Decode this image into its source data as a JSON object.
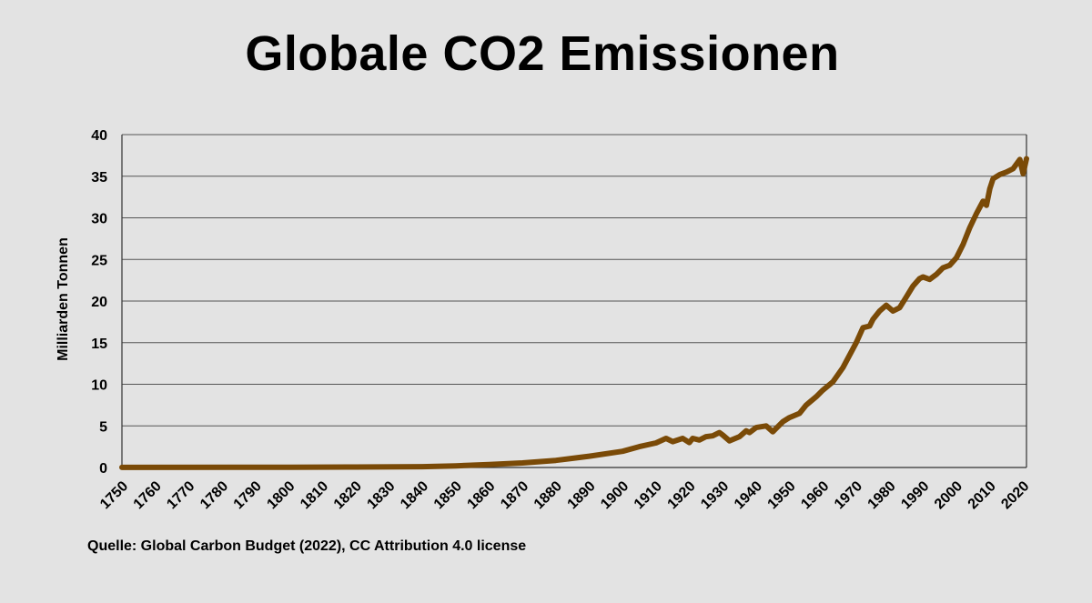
{
  "title": "Globale CO2 Emissionen",
  "source": "Quelle: Global Carbon Budget (2022), CC Attribution 4.0 license",
  "colors": {
    "line": "#7a4a07",
    "grid": "#555555",
    "background": "#e3e3e3"
  },
  "chart_data": {
    "type": "line",
    "title": "Globale CO2 Emissionen",
    "xlabel": "",
    "ylabel": "Milliarden Tonnen",
    "xlim": [
      1750,
      2021
    ],
    "ylim": [
      0,
      40
    ],
    "grid": true,
    "x_ticks": [
      1750,
      1760,
      1770,
      1780,
      1790,
      1800,
      1810,
      1820,
      1830,
      1840,
      1850,
      1860,
      1870,
      1880,
      1890,
      1900,
      1910,
      1920,
      1930,
      1940,
      1950,
      1960,
      1970,
      1980,
      1990,
      2000,
      2010,
      2020
    ],
    "y_ticks": [
      0,
      5,
      10,
      15,
      20,
      25,
      30,
      35,
      40
    ],
    "series": [
      {
        "x": [
          1750,
          1800,
          1820,
          1840,
          1850,
          1860,
          1870,
          1880,
          1890,
          1900,
          1905,
          1910,
          1913,
          1915,
          1918,
          1920,
          1921,
          1923,
          1925,
          1927,
          1929,
          1930,
          1932,
          1935,
          1937,
          1938,
          1940,
          1943,
          1945,
          1946,
          1948,
          1950,
          1953,
          1955,
          1958,
          1960,
          1963,
          1966,
          1970,
          1972,
          1974,
          1975,
          1977,
          1979,
          1981,
          1983,
          1985,
          1987,
          1989,
          1990,
          1992,
          1994,
          1996,
          1998,
          2000,
          2002,
          2004,
          2006,
          2008,
          2009,
          2010,
          2011,
          2013,
          2015,
          2017,
          2019,
          2020,
          2021
        ],
        "values": [
          0.01,
          0.03,
          0.05,
          0.1,
          0.2,
          0.35,
          0.55,
          0.85,
          1.35,
          1.95,
          2.5,
          2.95,
          3.5,
          3.1,
          3.5,
          3.0,
          3.5,
          3.3,
          3.7,
          3.8,
          4.2,
          3.9,
          3.2,
          3.7,
          4.4,
          4.2,
          4.8,
          5.0,
          4.3,
          4.7,
          5.5,
          6.0,
          6.5,
          7.5,
          8.5,
          9.3,
          10.3,
          12.0,
          15.0,
          16.8,
          17.0,
          17.8,
          18.8,
          19.5,
          18.8,
          19.2,
          20.5,
          21.8,
          22.7,
          22.9,
          22.6,
          23.2,
          24.0,
          24.3,
          25.2,
          26.8,
          28.8,
          30.5,
          32.0,
          31.5,
          33.5,
          34.7,
          35.2,
          35.5,
          35.9,
          37.0,
          35.3,
          37.1
        ]
      }
    ]
  }
}
